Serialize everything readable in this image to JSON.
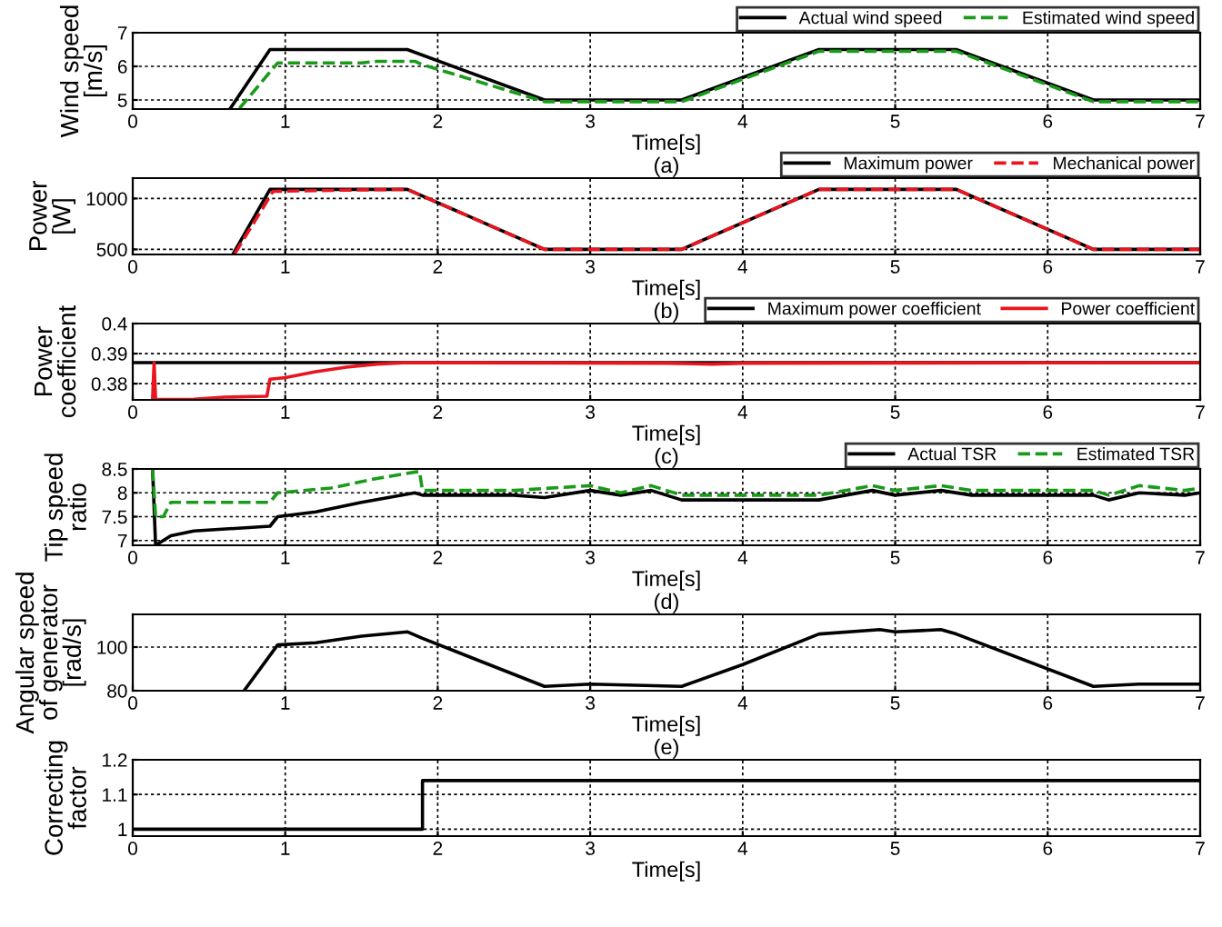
{
  "chart_data": [
    {
      "type": "line",
      "xlabel": "Time[s]",
      "ylabel": "Wind speed\n[m/s]",
      "annotations": [
        "(a)"
      ],
      "xlim": [
        0,
        7
      ],
      "xticks": [
        0,
        1,
        2,
        3,
        4,
        5,
        6,
        7
      ],
      "ylim": [
        4.73,
        7
      ],
      "yticks": [
        5,
        6,
        7
      ],
      "grid": true,
      "legend": "top right",
      "series": [
        {
          "name": "Actual wind speed",
          "color": "#000000",
          "line_style": "solid",
          "x": [
            0.64,
            0.9,
            1.8,
            2.7,
            3.6,
            4.5,
            5.4,
            6.3,
            7
          ],
          "values": [
            4.75,
            6.5,
            6.5,
            5,
            5,
            6.5,
            6.5,
            5,
            5
          ]
        },
        {
          "name": "Estimated wind speed",
          "color": "#1a9a1a",
          "line_style": "dashed",
          "x": [
            0.7,
            0.95,
            1.5,
            1.6,
            1.85,
            1.9,
            2.7,
            3.6,
            4.5,
            5.4,
            6.3,
            7
          ],
          "values": [
            4.75,
            6.1,
            6.1,
            6.15,
            6.15,
            6.05,
            4.95,
            4.95,
            6.45,
            6.45,
            4.95,
            4.95
          ]
        }
      ]
    },
    {
      "type": "line",
      "xlabel": "Time[s]",
      "ylabel": "Power\n[W]",
      "annotations": [
        "(b)"
      ],
      "xlim": [
        0,
        7
      ],
      "xticks": [
        0,
        1,
        2,
        3,
        4,
        5,
        6,
        7
      ],
      "ylim": [
        450,
        1200
      ],
      "yticks": [
        500,
        1000
      ],
      "grid": true,
      "legend": "top right",
      "series": [
        {
          "name": "Maximum power",
          "color": "#000000",
          "line_style": "solid",
          "x": [
            0.66,
            0.9,
            1.8,
            2.7,
            3.6,
            4.5,
            5.4,
            6.3,
            7
          ],
          "values": [
            460,
            1090,
            1090,
            500,
            500,
            1090,
            1090,
            500,
            500
          ]
        },
        {
          "name": "Mechanical power",
          "color": "#e8141e",
          "line_style": "dashed",
          "x": [
            0.67,
            0.92,
            1.3,
            1.8,
            2.7,
            3.6,
            4.5,
            5.4,
            6.3,
            7
          ],
          "values": [
            460,
            1070,
            1080,
            1090,
            500,
            500,
            1090,
            1090,
            500,
            500
          ]
        }
      ]
    },
    {
      "type": "line",
      "xlabel": "Time[s]",
      "ylabel": "Power\ncoefficient",
      "annotations": [
        "(c)"
      ],
      "xlim": [
        0,
        7
      ],
      "xticks": [
        0,
        1,
        2,
        3,
        4,
        5,
        6,
        7
      ],
      "ylim": [
        0.3746,
        0.4
      ],
      "yticks": [
        0.38,
        0.39,
        0.4
      ],
      "grid": true,
      "legend": "top right",
      "series": [
        {
          "name": "Maximum power coefficient",
          "color": "#000000",
          "line_style": "solid",
          "x": [
            0,
            7
          ],
          "values": [
            0.387,
            0.387
          ]
        },
        {
          "name": "Power coefficient",
          "color": "#e8141e",
          "line_style": "solid",
          "x": [
            0.13,
            0.14,
            0.15,
            0.4,
            0.6,
            0.88,
            0.9,
            1.0,
            1.2,
            1.4,
            1.6,
            1.8,
            3.5,
            3.8,
            4.0,
            7
          ],
          "values": [
            0.3747,
            0.387,
            0.3747,
            0.3748,
            0.3755,
            0.3758,
            0.3815,
            0.382,
            0.384,
            0.3855,
            0.3865,
            0.387,
            0.3868,
            0.3865,
            0.3868,
            0.387
          ]
        }
      ]
    },
    {
      "type": "line",
      "xlabel": "Time[s]",
      "ylabel": "Tip speed\nratio",
      "annotations": [
        "(d)"
      ],
      "xlim": [
        0,
        7
      ],
      "xticks": [
        0,
        1,
        2,
        3,
        4,
        5,
        6,
        7
      ],
      "ylim": [
        6.9,
        8.5
      ],
      "yticks": [
        7,
        7.5,
        8,
        8.5
      ],
      "grid": true,
      "legend": "top right",
      "series": [
        {
          "name": "Actual TSR",
          "color": "#000000",
          "line_style": "solid",
          "x": [
            0.13,
            0.15,
            0.2,
            0.25,
            0.4,
            0.9,
            0.95,
            1.2,
            1.5,
            1.85,
            1.9,
            2.5,
            2.7,
            3.0,
            3.2,
            3.4,
            3.6,
            4.5,
            4.85,
            5.0,
            5.3,
            5.5,
            6.3,
            6.4,
            6.6,
            6.9,
            7
          ],
          "values": [
            8.5,
            6.9,
            7.0,
            7.1,
            7.2,
            7.3,
            7.5,
            7.6,
            7.8,
            8.0,
            7.95,
            7.95,
            7.9,
            8.05,
            7.95,
            8.05,
            7.85,
            7.85,
            8.05,
            7.95,
            8.05,
            7.95,
            7.95,
            7.85,
            8.0,
            7.95,
            8.0
          ]
        },
        {
          "name": "Estimated TSR",
          "color": "#1a9a1a",
          "line_style": "dashed",
          "x": [
            0.13,
            0.15,
            0.2,
            0.25,
            0.9,
            0.95,
            1.3,
            1.6,
            1.88,
            1.9,
            2.5,
            3.0,
            3.2,
            3.4,
            3.6,
            4.5,
            4.85,
            5.0,
            5.3,
            5.5,
            6.3,
            6.4,
            6.6,
            6.9,
            7
          ],
          "values": [
            8.5,
            7.5,
            7.5,
            7.8,
            7.8,
            8.0,
            8.1,
            8.3,
            8.45,
            8.05,
            8.05,
            8.15,
            8.0,
            8.15,
            7.95,
            7.95,
            8.15,
            8.05,
            8.15,
            8.05,
            8.05,
            7.95,
            8.15,
            8.05,
            8.1
          ]
        }
      ]
    },
    {
      "type": "line",
      "xlabel": "Time[s]",
      "ylabel": "Angular speed\nof generator\n[rad/s]",
      "annotations": [
        "(e)"
      ],
      "xlim": [
        0,
        7
      ],
      "xticks": [
        0,
        1,
        2,
        3,
        4,
        5,
        6,
        7
      ],
      "ylim": [
        80,
        115
      ],
      "yticks": [
        80,
        100
      ],
      "grid": true,
      "series": [
        {
          "color": "#000000",
          "line_style": "solid",
          "x": [
            0.73,
            0.95,
            1.2,
            1.5,
            1.8,
            1.9,
            2.7,
            3.0,
            3.6,
            4.0,
            4.5,
            4.9,
            5.0,
            5.3,
            5.4,
            6.3,
            6.6,
            7
          ],
          "values": [
            80,
            101,
            102,
            105,
            107,
            104,
            82,
            83,
            82,
            92,
            106,
            108,
            107,
            108,
            106,
            82,
            83,
            83
          ]
        }
      ]
    },
    {
      "type": "step",
      "xlabel": "Time[s]",
      "ylabel": "Correcting\nfactor",
      "xlim": [
        0,
        7
      ],
      "xticks": [
        0,
        1,
        2,
        3,
        4,
        5,
        6,
        7
      ],
      "ylim": [
        0.98,
        1.2
      ],
      "yticks": [
        1,
        1.1,
        1.2
      ],
      "grid": true,
      "series": [
        {
          "color": "#000000",
          "line_style": "solid",
          "x": [
            0,
            1.9,
            7
          ],
          "values": [
            1,
            1.14,
            1.14
          ]
        }
      ]
    }
  ]
}
